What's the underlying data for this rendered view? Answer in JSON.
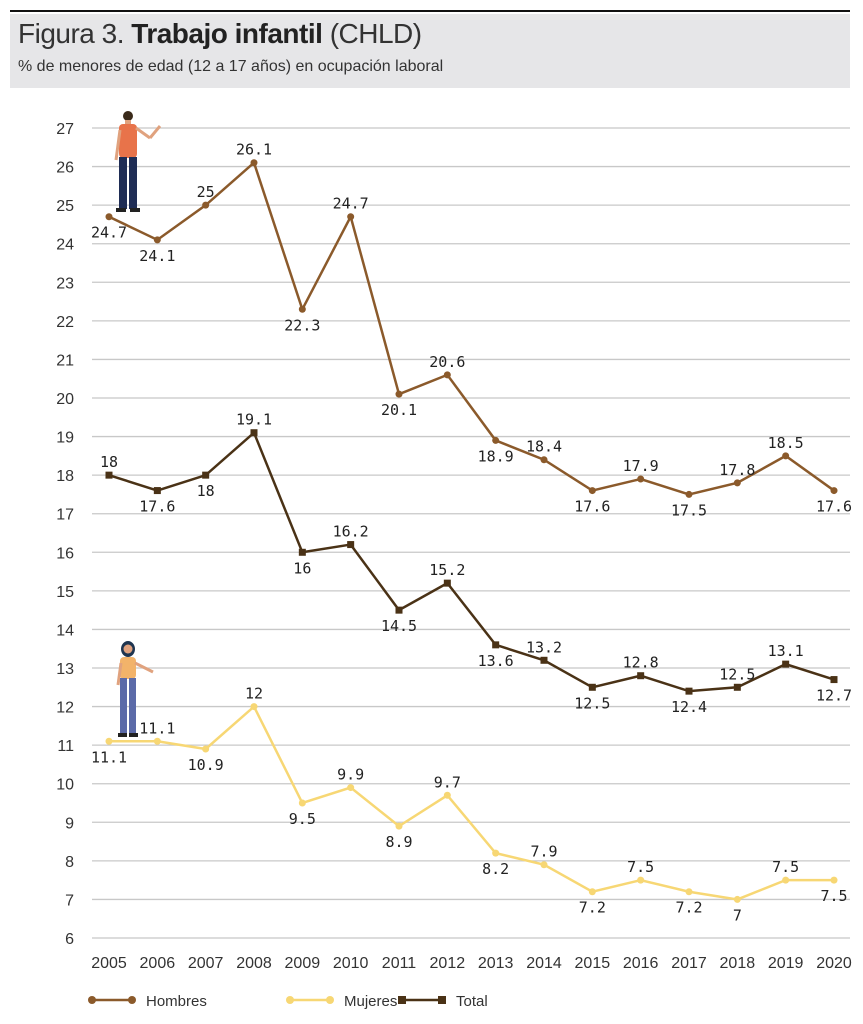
{
  "header": {
    "figure": "Figura 3.",
    "title_bold": "Trabajo infantil",
    "title_rest": "(CHLD)",
    "subtitle": "% de menores de edad (12 a 17 años) en ocupación laboral"
  },
  "chart_data": {
    "type": "line",
    "title": "Figura 3. Trabajo infantil (CHLD)",
    "subtitle": "% de menores de edad (12 a 17 años) en ocupación laboral",
    "xlabel": "",
    "ylabel": "",
    "x": [
      "2005",
      "2006",
      "2007",
      "2008",
      "2009",
      "2010",
      "2011",
      "2012",
      "2013",
      "2014",
      "2015",
      "2016",
      "2017",
      "2018",
      "2019",
      "2020"
    ],
    "ylim": [
      6,
      27
    ],
    "yticks": [
      "6",
      "7",
      "8",
      "9",
      "10",
      "11",
      "12",
      "13",
      "14",
      "15",
      "16",
      "17",
      "18",
      "19",
      "20",
      "21",
      "22",
      "23",
      "24",
      "25",
      "26",
      "27"
    ],
    "grid": true,
    "legend_position": "bottom",
    "series": [
      {
        "name": "Hombres",
        "color": "#8b5a2b",
        "marker": "circle",
        "values": [
          24.7,
          24.1,
          25,
          26.1,
          22.3,
          24.7,
          20.1,
          20.6,
          18.9,
          18.4,
          17.6,
          17.9,
          17.5,
          17.8,
          18.5,
          17.6
        ]
      },
      {
        "name": "Mujeres",
        "color": "#f7d774",
        "marker": "circle",
        "values": [
          11.1,
          11.1,
          10.9,
          12,
          9.5,
          9.9,
          8.9,
          9.7,
          8.2,
          7.9,
          7.2,
          7.5,
          7.2,
          7,
          7.5,
          7.5
        ]
      },
      {
        "name": "Total",
        "color": "#4a3216",
        "marker": "square",
        "values": [
          18,
          17.6,
          18,
          19.1,
          16,
          16.2,
          14.5,
          15.2,
          13.6,
          13.2,
          12.5,
          12.8,
          12.4,
          12.5,
          13.1,
          12.7
        ]
      }
    ]
  }
}
